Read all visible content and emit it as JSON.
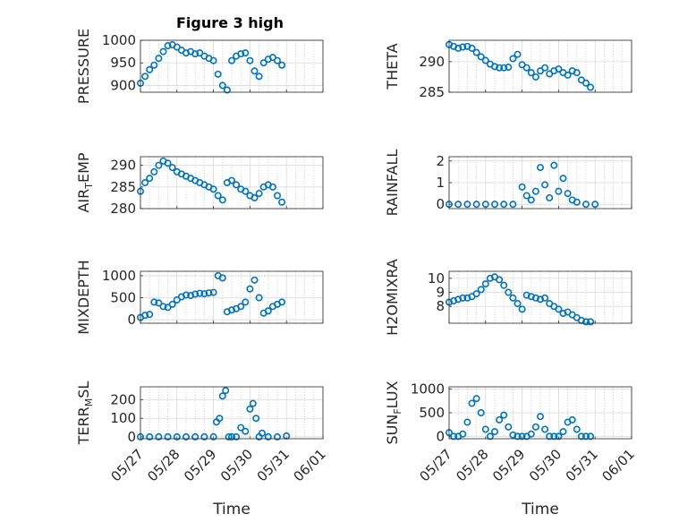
{
  "figure": {
    "title": "Figure 3 high"
  },
  "colors": {
    "marker": "#0072BD",
    "axis": "#262626",
    "grid": "#b8b8b8"
  },
  "chart_data": [
    {
      "type": "scatter",
      "title": "Figure 3 high",
      "ylabel_parts": [
        "PRESSURE"
      ],
      "xlabel": "",
      "ylim": [
        885,
        1000
      ],
      "yticks": [
        900,
        950,
        1000
      ],
      "xticks": [
        "05/27",
        "05/28",
        "05/29",
        "05/30",
        "05/31",
        "06/01"
      ],
      "xlim": [
        "05/27",
        "06/01"
      ],
      "grid": true,
      "x": [
        "05/27 00:00",
        "05/27 03:00",
        "05/27 06:00",
        "05/27 09:00",
        "05/27 12:00",
        "05/27 15:00",
        "05/27 18:00",
        "05/27 21:00",
        "05/28 00:00",
        "05/28 03:00",
        "05/28 06:00",
        "05/28 09:00",
        "05/28 12:00",
        "05/28 15:00",
        "05/28 18:00",
        "05/28 21:00",
        "05/29 00:00",
        "05/29 03:00",
        "05/29 06:00",
        "05/29 09:00",
        "05/29 12:00",
        "05/29 15:00",
        "05/29 18:00",
        "05/29 21:00",
        "05/30 00:00",
        "05/30 03:00",
        "05/30 06:00",
        "05/30 09:00",
        "05/30 12:00",
        "05/30 15:00",
        "05/30 18:00",
        "05/30 21:00"
      ],
      "y": [
        905,
        920,
        935,
        945,
        960,
        975,
        988,
        990,
        985,
        978,
        972,
        975,
        970,
        972,
        965,
        960,
        955,
        925,
        900,
        890,
        955,
        965,
        970,
        972,
        955,
        932,
        920,
        950,
        958,
        962,
        955,
        945
      ]
    },
    {
      "type": "scatter",
      "title": "",
      "ylabel_parts": [
        "THETA"
      ],
      "xlabel": "",
      "ylim": [
        285,
        293.5
      ],
      "yticks": [
        285,
        290
      ],
      "xticks": [
        "05/27",
        "05/28",
        "05/29",
        "05/30",
        "05/31",
        "06/01"
      ],
      "xlim": [
        "05/27",
        "06/01"
      ],
      "grid": true,
      "x": [
        "05/27 00:00",
        "05/27 03:00",
        "05/27 06:00",
        "05/27 09:00",
        "05/27 12:00",
        "05/27 15:00",
        "05/27 18:00",
        "05/27 21:00",
        "05/28 00:00",
        "05/28 03:00",
        "05/28 06:00",
        "05/28 09:00",
        "05/28 12:00",
        "05/28 15:00",
        "05/28 18:00",
        "05/28 21:00",
        "05/29 00:00",
        "05/29 03:00",
        "05/29 06:00",
        "05/29 09:00",
        "05/29 12:00",
        "05/29 15:00",
        "05/29 18:00",
        "05/29 21:00",
        "05/30 00:00",
        "05/30 03:00",
        "05/30 06:00",
        "05/30 09:00",
        "05/30 12:00",
        "05/30 15:00",
        "05/30 18:00",
        "05/30 21:00"
      ],
      "y": [
        292.8,
        292.5,
        292.2,
        292.4,
        292.5,
        292.2,
        291.5,
        290.8,
        290.2,
        289.6,
        289.2,
        289.0,
        289.0,
        289.1,
        290.5,
        291.2,
        289.5,
        289.0,
        288.2,
        287.5,
        288.5,
        289.0,
        288.0,
        288.5,
        288.8,
        288.2,
        287.8,
        288.5,
        288.2,
        287.0,
        286.5,
        285.8
      ]
    },
    {
      "type": "scatter",
      "title": "",
      "ylabel_parts": [
        "AIR",
        "T",
        "EMP"
      ],
      "xlabel": "",
      "ylim": [
        280,
        292
      ],
      "yticks": [
        280,
        285,
        290
      ],
      "xticks": [
        "05/27",
        "05/28",
        "05/29",
        "05/30",
        "05/31",
        "06/01"
      ],
      "xlim": [
        "05/27",
        "06/01"
      ],
      "grid": true,
      "x": [
        "05/27 00:00",
        "05/27 03:00",
        "05/27 06:00",
        "05/27 09:00",
        "05/27 12:00",
        "05/27 15:00",
        "05/27 18:00",
        "05/27 21:00",
        "05/28 00:00",
        "05/28 03:00",
        "05/28 06:00",
        "05/28 09:00",
        "05/28 12:00",
        "05/28 15:00",
        "05/28 18:00",
        "05/28 21:00",
        "05/29 00:00",
        "05/29 03:00",
        "05/29 06:00",
        "05/29 09:00",
        "05/29 12:00",
        "05/29 15:00",
        "05/29 18:00",
        "05/29 21:00",
        "05/30 00:00",
        "05/30 03:00",
        "05/30 06:00",
        "05/30 09:00",
        "05/30 12:00",
        "05/30 15:00",
        "05/30 18:00",
        "05/30 21:00"
      ],
      "y": [
        284,
        286,
        287,
        288.5,
        290,
        291,
        290.5,
        289.5,
        288.5,
        288,
        287.5,
        287,
        286.5,
        286,
        285.5,
        285,
        284.5,
        283,
        282,
        286,
        286.5,
        285.5,
        284.5,
        284,
        283,
        282.5,
        283.5,
        285,
        285.5,
        285,
        283,
        281.5
      ]
    },
    {
      "type": "scatter",
      "title": "",
      "ylabel_parts": [
        "RAINFALL"
      ],
      "xlabel": "",
      "ylim": [
        -0.2,
        2.2
      ],
      "yticks": [
        0,
        1,
        2
      ],
      "xticks": [
        "05/27",
        "05/28",
        "05/29",
        "05/30",
        "05/31",
        "06/01"
      ],
      "xlim": [
        "05/27",
        "06/01"
      ],
      "grid": true,
      "x": [
        "05/27 00:00",
        "05/27 06:00",
        "05/27 12:00",
        "05/27 18:00",
        "05/28 00:00",
        "05/28 06:00",
        "05/28 12:00",
        "05/28 18:00",
        "05/29 00:00",
        "05/29 03:00",
        "05/29 06:00",
        "05/29 09:00",
        "05/29 12:00",
        "05/29 15:00",
        "05/29 18:00",
        "05/29 21:00",
        "05/30 00:00",
        "05/30 03:00",
        "05/30 06:00",
        "05/30 09:00",
        "05/30 12:00",
        "05/30 18:00",
        "05/31 00:00"
      ],
      "y": [
        0,
        0,
        0,
        0,
        0,
        0,
        0,
        0,
        0.8,
        0.4,
        0.2,
        0.6,
        1.7,
        0.9,
        0.3,
        1.8,
        0.6,
        1.2,
        0.5,
        0.2,
        0.1,
        0,
        0
      ]
    },
    {
      "type": "scatter",
      "title": "",
      "ylabel_parts": [
        "MIXDEPTH"
      ],
      "xlabel": "",
      "ylim": [
        -80,
        1100
      ],
      "yticks": [
        0,
        500,
        1000
      ],
      "xticks": [
        "05/27",
        "05/28",
        "05/29",
        "05/30",
        "05/31",
        "06/01"
      ],
      "xlim": [
        "05/27",
        "06/01"
      ],
      "grid": true,
      "x": [
        "05/27 00:00",
        "05/27 03:00",
        "05/27 06:00",
        "05/27 09:00",
        "05/27 12:00",
        "05/27 15:00",
        "05/27 18:00",
        "05/27 21:00",
        "05/28 00:00",
        "05/28 03:00",
        "05/28 06:00",
        "05/28 09:00",
        "05/28 12:00",
        "05/28 15:00",
        "05/28 18:00",
        "05/28 21:00",
        "05/29 00:00",
        "05/29 03:00",
        "05/29 06:00",
        "05/29 09:00",
        "05/29 12:00",
        "05/29 15:00",
        "05/29 18:00",
        "05/29 21:00",
        "05/30 00:00",
        "05/30 03:00",
        "05/30 06:00",
        "05/30 09:00",
        "05/30 12:00",
        "05/30 15:00",
        "05/30 18:00",
        "05/30 21:00"
      ],
      "y": [
        50,
        100,
        120,
        400,
        380,
        300,
        280,
        350,
        450,
        520,
        560,
        550,
        580,
        600,
        590,
        610,
        620,
        1000,
        950,
        180,
        220,
        250,
        300,
        400,
        700,
        900,
        500,
        150,
        200,
        300,
        350,
        400
      ]
    },
    {
      "type": "scatter",
      "title": "",
      "ylabel_parts": [
        "H2OMIXRA"
      ],
      "xlabel": "",
      "ylim": [
        6.8,
        10.5
      ],
      "yticks": [
        8,
        9,
        10
      ],
      "xticks": [
        "05/27",
        "05/28",
        "05/29",
        "05/30",
        "05/31",
        "06/01"
      ],
      "xlim": [
        "05/27",
        "06/01"
      ],
      "grid": true,
      "x": [
        "05/27 00:00",
        "05/27 03:00",
        "05/27 06:00",
        "05/27 09:00",
        "05/27 12:00",
        "05/27 15:00",
        "05/27 18:00",
        "05/27 21:00",
        "05/28 00:00",
        "05/28 03:00",
        "05/28 06:00",
        "05/28 09:00",
        "05/28 12:00",
        "05/28 15:00",
        "05/28 18:00",
        "05/28 21:00",
        "05/29 00:00",
        "05/29 03:00",
        "05/29 06:00",
        "05/29 09:00",
        "05/29 12:00",
        "05/29 15:00",
        "05/29 18:00",
        "05/29 21:00",
        "05/30 00:00",
        "05/30 03:00",
        "05/30 06:00",
        "05/30 09:00",
        "05/30 12:00",
        "05/30 15:00",
        "05/30 18:00",
        "05/30 21:00"
      ],
      "y": [
        8.3,
        8.4,
        8.5,
        8.6,
        8.6,
        8.7,
        8.9,
        9.2,
        9.6,
        10.0,
        10.1,
        9.9,
        9.5,
        9.0,
        8.6,
        8.2,
        7.8,
        8.8,
        8.7,
        8.6,
        8.5,
        8.6,
        8.2,
        8.0,
        7.8,
        7.5,
        7.6,
        7.4,
        7.2,
        7.0,
        6.9,
        6.9
      ]
    },
    {
      "type": "scatter",
      "title": "",
      "ylabel_parts": [
        "TERR",
        "M",
        "SL"
      ],
      "xlabel": "Time",
      "ylim": [
        -10,
        270
      ],
      "yticks": [
        0,
        100,
        200
      ],
      "xticks": [
        "05/27",
        "05/28",
        "05/29",
        "05/30",
        "05/31",
        "06/01"
      ],
      "xlim": [
        "05/27",
        "06/01"
      ],
      "grid": true,
      "x": [
        "05/27 00:00",
        "05/27 06:00",
        "05/27 12:00",
        "05/27 18:00",
        "05/28 00:00",
        "05/28 06:00",
        "05/28 12:00",
        "05/28 18:00",
        "05/29 00:00",
        "05/29 02:00",
        "05/29 04:00",
        "05/29 06:00",
        "05/29 08:00",
        "05/29 10:00",
        "05/29 12:00",
        "05/29 15:00",
        "05/29 18:00",
        "05/29 21:00",
        "05/30 00:00",
        "05/30 02:00",
        "05/30 04:00",
        "05/30 06:00",
        "05/30 08:00",
        "05/30 12:00",
        "05/30 18:00",
        "05/31 00:00"
      ],
      "y": [
        0,
        0,
        0,
        0,
        0,
        0,
        0,
        0,
        0,
        80,
        100,
        220,
        250,
        0,
        0,
        0,
        50,
        30,
        150,
        180,
        100,
        0,
        20,
        0,
        0,
        5
      ]
    },
    {
      "type": "scatter",
      "title": "",
      "ylabel_parts": [
        "SUN",
        "F",
        "LUX"
      ],
      "xlabel": "Time",
      "ylim": [
        -50,
        1050
      ],
      "yticks": [
        0,
        500,
        1000
      ],
      "xticks": [
        "05/27",
        "05/28",
        "05/29",
        "05/30",
        "05/31",
        "06/01"
      ],
      "xlim": [
        "05/27",
        "06/01"
      ],
      "grid": true,
      "x": [
        "05/27 00:00",
        "05/27 03:00",
        "05/27 06:00",
        "05/27 09:00",
        "05/27 12:00",
        "05/27 15:00",
        "05/27 18:00",
        "05/27 21:00",
        "05/28 00:00",
        "05/28 03:00",
        "05/28 06:00",
        "05/28 09:00",
        "05/28 12:00",
        "05/28 15:00",
        "05/28 18:00",
        "05/28 21:00",
        "05/29 00:00",
        "05/29 03:00",
        "05/29 06:00",
        "05/29 09:00",
        "05/29 12:00",
        "05/29 15:00",
        "05/29 18:00",
        "05/29 21:00",
        "05/30 00:00",
        "05/30 03:00",
        "05/30 06:00",
        "05/30 09:00",
        "05/30 12:00",
        "05/30 15:00",
        "05/30 18:00",
        "05/30 21:00"
      ],
      "y": [
        80,
        0,
        0,
        50,
        300,
        700,
        800,
        500,
        150,
        0,
        100,
        350,
        450,
        200,
        30,
        0,
        0,
        0,
        50,
        200,
        420,
        150,
        0,
        0,
        0,
        100,
        300,
        350,
        150,
        0,
        0,
        0
      ]
    }
  ]
}
